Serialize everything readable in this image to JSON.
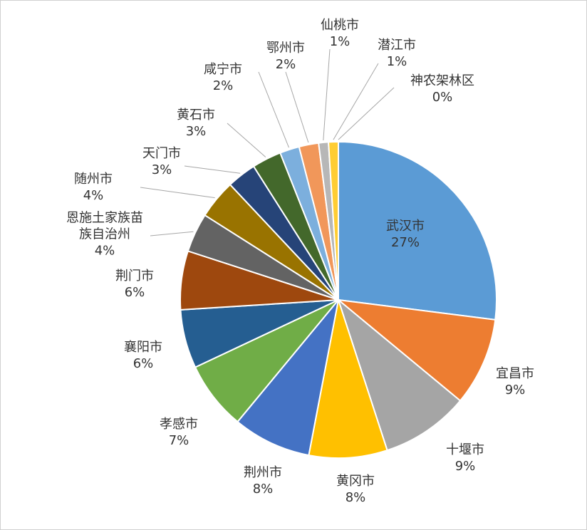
{
  "chart_data": {
    "type": "pie",
    "categories": [
      "武汉市",
      "宜昌市",
      "十堰市",
      "黄冈市",
      "荆州市",
      "孝感市",
      "襄阳市",
      "荆门市",
      "恩施土家族苗族自治州",
      "随州市",
      "天门市",
      "黄石市",
      "咸宁市",
      "鄂州市",
      "仙桃市",
      "潜江市",
      "神农架林区"
    ],
    "values": [
      27,
      9,
      9,
      8,
      8,
      7,
      6,
      6,
      4,
      4,
      3,
      3,
      2,
      2,
      1,
      1,
      0
    ],
    "value_labels": [
      "27%",
      "9%",
      "9%",
      "8%",
      "8%",
      "7%",
      "6%",
      "6%",
      "4%",
      "4%",
      "3%",
      "3%",
      "2%",
      "2%",
      "1%",
      "1%",
      "0%"
    ],
    "colors": [
      "#5b9bd5",
      "#ed7d31",
      "#a5a5a5",
      "#ffc000",
      "#4472c4",
      "#70ad47",
      "#255e91",
      "#9e480e",
      "#636363",
      "#997300",
      "#264478",
      "#43682b",
      "#7cafdd",
      "#f1975a",
      "#b7b7b7",
      "#ffcd33",
      "#698ed0"
    ]
  }
}
